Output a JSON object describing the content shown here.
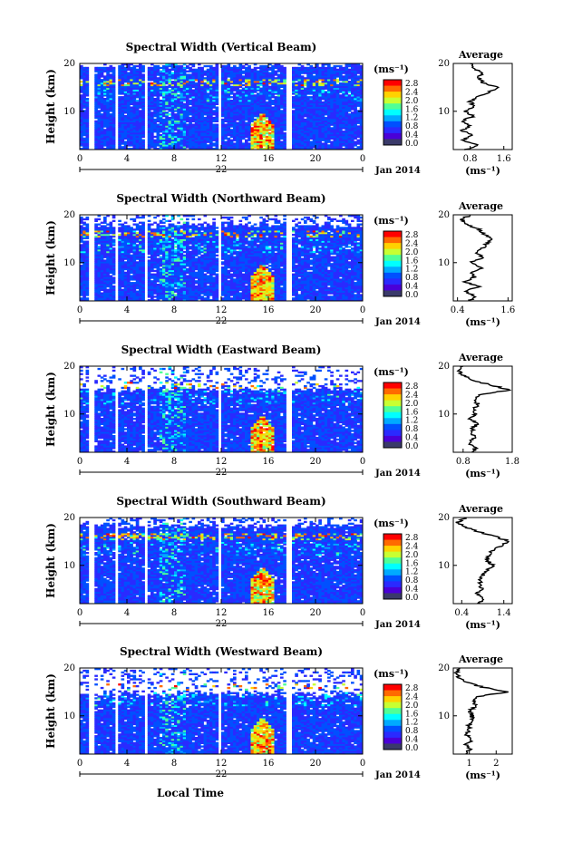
{
  "figure": {
    "xlabel": "Local Time",
    "date_label": "Jan 2014",
    "day_label": "22"
  },
  "colorbar": {
    "unit": "(ms⁻¹)",
    "ticks": [
      "2.8",
      "2.4",
      "2.0",
      "1.6",
      "1.2",
      "0.8",
      "0.4",
      "0.0"
    ],
    "colors": [
      "#ff0000",
      "#ff6a00",
      "#ffd200",
      "#c8ff32",
      "#50ff96",
      "#00ffff",
      "#00aaff",
      "#0050ff",
      "#2a2aff",
      "#4a00d8",
      "#3a3a6a"
    ]
  },
  "chart_data": [
    {
      "type": "heatmap",
      "title": "Spectral Width (Vertical Beam)",
      "ylabel": "Height (km)",
      "x_ticks": [
        "0",
        "4",
        "8",
        "12",
        "16",
        "20",
        "0"
      ],
      "y_ticks": [
        "20",
        "10"
      ],
      "xlim": [
        0,
        24
      ],
      "ylim": [
        2,
        20
      ],
      "avg": {
        "title": "Average",
        "xlim": [
          0.4,
          1.8
        ],
        "xticks": [
          "0.8",
          "1.6"
        ],
        "xlabel": "(ms⁻¹)",
        "profile": [
          [
            0.7,
            2
          ],
          [
            1.0,
            3
          ],
          [
            0.6,
            4
          ],
          [
            0.9,
            5
          ],
          [
            0.6,
            6
          ],
          [
            0.8,
            7
          ],
          [
            0.6,
            8
          ],
          [
            0.9,
            9
          ],
          [
            0.65,
            10
          ],
          [
            0.9,
            11
          ],
          [
            0.8,
            12
          ],
          [
            1.0,
            13
          ],
          [
            1.25,
            14
          ],
          [
            1.45,
            15
          ],
          [
            1.1,
            16
          ],
          [
            1.0,
            17
          ],
          [
            1.1,
            18
          ],
          [
            0.9,
            19
          ],
          [
            0.8,
            20
          ]
        ]
      }
    },
    {
      "type": "heatmap",
      "title": "Spectral Width (Northward Beam)",
      "ylabel": "Height (km)",
      "x_ticks": [
        "0",
        "4",
        "8",
        "12",
        "16",
        "20",
        "0"
      ],
      "y_ticks": [
        "20",
        "10"
      ],
      "xlim": [
        0,
        24
      ],
      "ylim": [
        2,
        20
      ],
      "avg": {
        "title": "Average",
        "xlim": [
          0.3,
          1.7
        ],
        "xticks": [
          "0.4",
          "1.6"
        ],
        "xlabel": "(ms⁻¹)",
        "profile": [
          [
            0.7,
            2
          ],
          [
            0.8,
            3
          ],
          [
            0.6,
            4
          ],
          [
            0.9,
            5
          ],
          [
            0.6,
            6
          ],
          [
            0.8,
            7
          ],
          [
            0.7,
            8
          ],
          [
            1.0,
            9
          ],
          [
            0.7,
            10
          ],
          [
            1.0,
            11
          ],
          [
            0.85,
            12
          ],
          [
            1.0,
            13
          ],
          [
            1.1,
            14
          ],
          [
            1.25,
            15
          ],
          [
            1.0,
            16
          ],
          [
            0.9,
            17
          ],
          [
            0.6,
            18
          ],
          [
            0.5,
            19
          ],
          [
            0.7,
            20
          ]
        ]
      }
    },
    {
      "type": "heatmap",
      "title": "Spectral Width (Eastward Beam)",
      "ylabel": "Height (km)",
      "x_ticks": [
        "0",
        "4",
        "8",
        "12",
        "16",
        "20",
        "0"
      ],
      "y_ticks": [
        "20",
        "10"
      ],
      "xlim": [
        0,
        24
      ],
      "ylim": [
        2,
        20
      ],
      "avg": {
        "title": "Average",
        "xlim": [
          0.6,
          1.8
        ],
        "xticks": [
          "0.8",
          "1.8"
        ],
        "xlabel": "(ms⁻¹)",
        "profile": [
          [
            1.0,
            2
          ],
          [
            1.05,
            3
          ],
          [
            0.9,
            4
          ],
          [
            1.05,
            5
          ],
          [
            0.95,
            6
          ],
          [
            1.0,
            7
          ],
          [
            1.1,
            8
          ],
          [
            0.95,
            9
          ],
          [
            1.05,
            10
          ],
          [
            1.0,
            11
          ],
          [
            1.1,
            12
          ],
          [
            1.05,
            13
          ],
          [
            1.1,
            14
          ],
          [
            1.75,
            15
          ],
          [
            1.4,
            16
          ],
          [
            1.0,
            17
          ],
          [
            0.8,
            18
          ],
          [
            0.7,
            19
          ],
          [
            0.8,
            20
          ]
        ]
      }
    },
    {
      "type": "heatmap",
      "title": "Spectral Width (Southward Beam)",
      "ylabel": "Height (km)",
      "x_ticks": [
        "0",
        "4",
        "8",
        "12",
        "16",
        "20",
        "0"
      ],
      "y_ticks": [
        "20",
        "10"
      ],
      "xlim": [
        0,
        24
      ],
      "ylim": [
        2,
        20
      ],
      "avg": {
        "title": "Average",
        "xlim": [
          0.2,
          1.6
        ],
        "xticks": [
          "0.4",
          "1.4"
        ],
        "xlabel": "(ms⁻¹)",
        "profile": [
          [
            0.8,
            2
          ],
          [
            0.9,
            3
          ],
          [
            0.75,
            4
          ],
          [
            0.9,
            5
          ],
          [
            0.8,
            6
          ],
          [
            0.85,
            7
          ],
          [
            0.9,
            8
          ],
          [
            1.0,
            9
          ],
          [
            1.15,
            10
          ],
          [
            1.0,
            11
          ],
          [
            1.05,
            12
          ],
          [
            1.1,
            13
          ],
          [
            1.3,
            14
          ],
          [
            1.55,
            15
          ],
          [
            1.2,
            16
          ],
          [
            0.8,
            17
          ],
          [
            0.5,
            18
          ],
          [
            0.3,
            19
          ],
          [
            0.5,
            20
          ]
        ]
      }
    },
    {
      "type": "heatmap",
      "title": "Spectral Width (Westward Beam)",
      "ylabel": "Height (km)",
      "x_ticks": [
        "0",
        "4",
        "8",
        "12",
        "16",
        "20",
        "0"
      ],
      "y_ticks": [
        "20",
        "10"
      ],
      "xlim": [
        0,
        24
      ],
      "ylim": [
        2,
        20
      ],
      "avg": {
        "title": "Average",
        "xlim": [
          0.4,
          2.6
        ],
        "xticks": [
          "1",
          "2"
        ],
        "xlabel": "(ms⁻¹)",
        "profile": [
          [
            0.9,
            2
          ],
          [
            1.0,
            3
          ],
          [
            0.85,
            4
          ],
          [
            1.1,
            5
          ],
          [
            0.9,
            6
          ],
          [
            1.0,
            7
          ],
          [
            1.0,
            8
          ],
          [
            1.05,
            9
          ],
          [
            1.1,
            10
          ],
          [
            1.0,
            11
          ],
          [
            1.2,
            12
          ],
          [
            1.15,
            13
          ],
          [
            1.3,
            14
          ],
          [
            2.4,
            15
          ],
          [
            1.5,
            16
          ],
          [
            0.9,
            17
          ],
          [
            0.6,
            18
          ],
          [
            0.5,
            19
          ],
          [
            0.6,
            20
          ]
        ]
      }
    }
  ]
}
